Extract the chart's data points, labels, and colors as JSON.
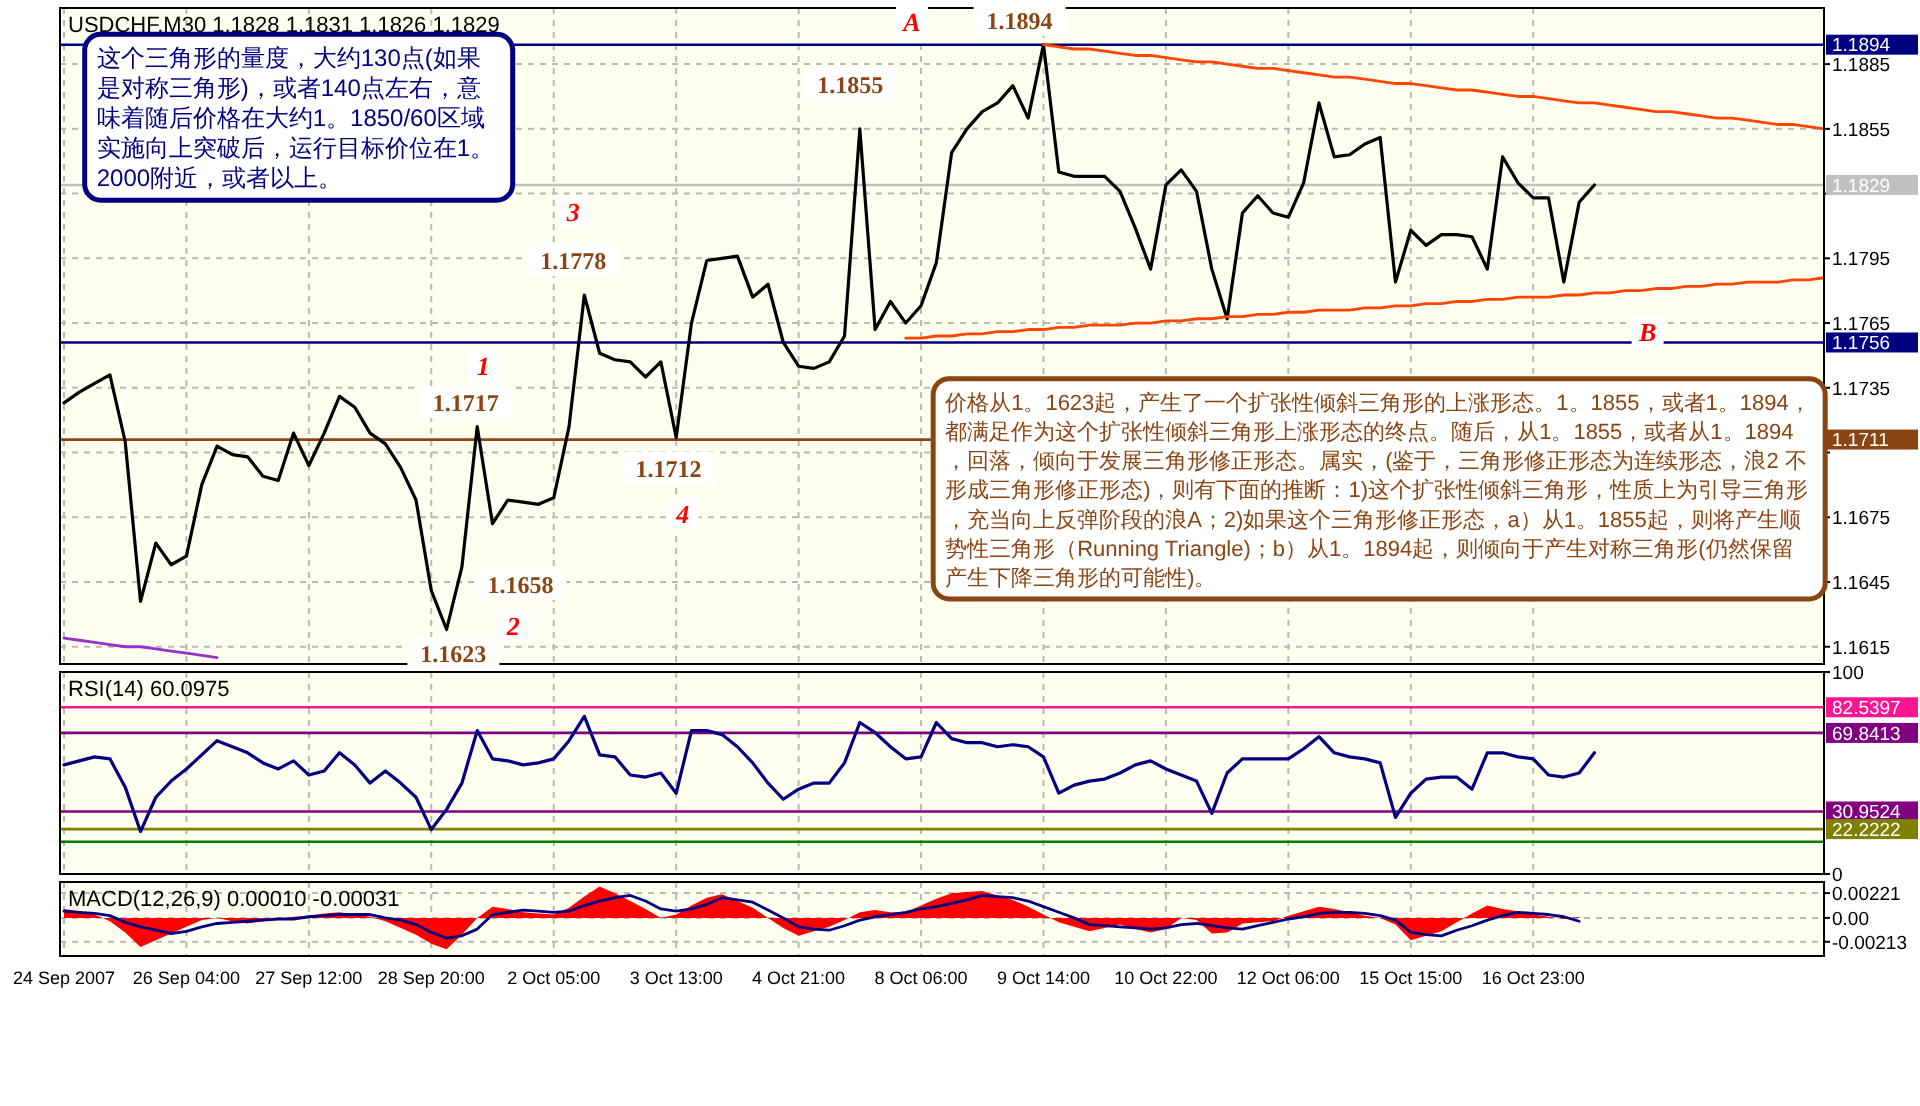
{
  "chart_data": [
    {
      "type": "line",
      "title": "USDCHF,M30  1.1828 1.1831 1.1826 1.1829",
      "grid": true,
      "tick_labels": "y",
      "categories": [
        null,
        null,
        null,
        null,
        null,
        null,
        null,
        null,
        null,
        null,
        null,
        null,
        null,
        null,
        null,
        null,
        null,
        null,
        null,
        null,
        null,
        null,
        null,
        null,
        null,
        null,
        null,
        null,
        null,
        null,
        null,
        null,
        null,
        null,
        null,
        null,
        null,
        null,
        null,
        null,
        null,
        null,
        null,
        null,
        null,
        null,
        null,
        null,
        null,
        null,
        null,
        null,
        null,
        null,
        null,
        null,
        null,
        null,
        null,
        null,
        null,
        null,
        null,
        null,
        null,
        null,
        null,
        null,
        null,
        null,
        null,
        null,
        null,
        null,
        null,
        null,
        null,
        null,
        null,
        null,
        null,
        null,
        null,
        null,
        null,
        null,
        null,
        null,
        null,
        null,
        null,
        null,
        null,
        null,
        null,
        null,
        null,
        null,
        null,
        null,
        null,
        null,
        null,
        null,
        null,
        null,
        null,
        null,
        null,
        null,
        null,
        null,
        null,
        null,
        null,
        null
      ],
      "ylim": [
        1.1607,
        1.1911
      ],
      "yticks": [
        1.1615,
        1.1645,
        1.1675,
        {
          "value": 1.1705,
          "label": null
        },
        1.1735,
        1.1765,
        1.1795,
        {
          "value": 1.1825,
          "label": null
        },
        1.1855,
        1.1885
      ],
      "ref_lines": [
        {
          "axis": "y",
          "value": 1.1894,
          "label": "1.1894",
          "color": "#000080"
        },
        {
          "axis": "y",
          "value": 1.1829,
          "label": "1.1829",
          "color": "#c0c0c0"
        },
        {
          "axis": "y",
          "value": 1.1756,
          "label": "1.1756",
          "color": "#000080"
        },
        {
          "axis": "y",
          "value": 1.1711,
          "label": "1.1711",
          "color": "#8b4513"
        }
      ],
      "series": [
        {
          "color": "#000000",
          "values": [
            1.1728,
            1.1733,
            1.1737,
            1.1741,
            1.171,
            1.1636,
            1.1663,
            1.1653,
            1.1657,
            1.169,
            1.1708,
            1.1704,
            1.1703,
            1.1694,
            1.1692,
            1.1714,
            1.1699,
            1.1714,
            1.1731,
            1.1726,
            1.1714,
            1.1709,
            1.1698,
            1.1683,
            1.1641,
            1.1623,
            1.1652,
            1.1717,
            1.1672,
            1.1683,
            1.1682,
            1.1681,
            1.1684,
            1.1717,
            1.1778,
            1.1751,
            1.1748,
            1.1747,
            1.174,
            1.1747,
            1.1712,
            1.1765,
            1.1794,
            1.1795,
            1.1796,
            1.1777,
            1.1783,
            1.1756,
            1.1745,
            1.1744,
            1.1747,
            1.1759,
            1.1855,
            1.1762,
            1.1775,
            1.1765,
            1.1773,
            1.1793,
            1.1844,
            1.1855,
            1.1863,
            1.1867,
            1.1875,
            1.186,
            1.1894,
            1.1835,
            1.1833,
            1.1833,
            1.1833,
            1.1826,
            1.1809,
            1.179,
            1.1829,
            1.1836,
            1.1826,
            1.179,
            1.1767,
            1.1816,
            1.1824,
            1.1816,
            1.1814,
            1.183,
            1.1867,
            1.1842,
            1.1843,
            1.1848,
            1.1851,
            1.1784,
            1.1808,
            1.1801,
            1.1806,
            1.1806,
            1.1805,
            1.179,
            1.1842,
            1.183,
            1.1823,
            1.1823,
            1.1784,
            1.1821,
            1.1829,
            null,
            null,
            null,
            null,
            null,
            null,
            null,
            null,
            null,
            null,
            null,
            null,
            null,
            null,
            null
          ]
        },
        {
          "color": "#ff4500",
          "values": [
            null,
            null,
            null,
            null,
            null,
            null,
            null,
            null,
            null,
            null,
            null,
            null,
            null,
            null,
            null,
            null,
            null,
            null,
            null,
            null,
            null,
            null,
            null,
            null,
            null,
            null,
            null,
            null,
            null,
            null,
            null,
            null,
            null,
            null,
            null,
            null,
            null,
            null,
            null,
            null,
            null,
            null,
            null,
            null,
            null,
            null,
            null,
            null,
            null,
            null,
            null,
            null,
            null,
            null,
            null,
            null,
            null,
            null,
            null,
            null,
            null,
            null,
            null,
            null,
            1.1894,
            1.1893,
            1.1892,
            1.1892,
            1.1891,
            1.189,
            1.1889,
            1.1889,
            1.1888,
            1.1887,
            1.1886,
            1.1886,
            1.1885,
            1.1884,
            1.1883,
            1.1883,
            1.1882,
            1.1881,
            1.188,
            1.1879,
            1.1879,
            1.1878,
            1.1877,
            1.1876,
            1.1876,
            1.1875,
            1.1874,
            1.1873,
            1.1873,
            1.1872,
            1.1871,
            1.187,
            1.187,
            1.1869,
            1.1868,
            1.1867,
            1.1867,
            1.1866,
            1.1865,
            1.1864,
            1.1863,
            1.1863,
            1.1862,
            1.1861,
            1.186,
            1.186,
            1.1859,
            1.1858,
            1.1857,
            1.1857,
            1.1856,
            1.1855
          ]
        },
        {
          "color": "#ff4500",
          "values": [
            null,
            null,
            null,
            null,
            null,
            null,
            null,
            null,
            null,
            null,
            null,
            null,
            null,
            null,
            null,
            null,
            null,
            null,
            null,
            null,
            null,
            null,
            null,
            null,
            null,
            null,
            null,
            null,
            null,
            null,
            null,
            null,
            null,
            null,
            null,
            null,
            null,
            null,
            null,
            null,
            null,
            null,
            null,
            null,
            null,
            null,
            null,
            null,
            null,
            null,
            null,
            null,
            null,
            null,
            null,
            1.1758,
            1.1758,
            1.1759,
            1.1759,
            1.176,
            1.176,
            1.1761,
            1.1761,
            1.1762,
            1.1762,
            1.1763,
            1.1763,
            1.1764,
            1.1764,
            1.1764,
            1.1765,
            1.1765,
            1.1766,
            1.1766,
            1.1767,
            1.1767,
            1.1768,
            1.1768,
            1.1769,
            1.1769,
            1.177,
            1.177,
            1.1771,
            1.1771,
            1.1771,
            1.1772,
            1.1772,
            1.1773,
            1.1773,
            1.1774,
            1.1774,
            1.1775,
            1.1775,
            1.1776,
            1.1776,
            1.1777,
            1.1777,
            1.1777,
            1.1778,
            1.1778,
            1.1779,
            1.1779,
            1.178,
            1.178,
            1.1781,
            1.1781,
            1.1782,
            1.1782,
            1.1783,
            1.1783,
            1.1784,
            1.1784,
            1.1784,
            1.1785,
            1.1785,
            1.1786
          ]
        },
        {
          "color": "#9932cc",
          "values": [
            1.1619,
            1.1618,
            1.1617,
            1.1616,
            1.1615,
            1.1615,
            1.1614,
            1.1613,
            1.1612,
            1.1611,
            1.161,
            null,
            null,
            null,
            null,
            null,
            null,
            null,
            null,
            null,
            null,
            null,
            null,
            null,
            null,
            null,
            null,
            null,
            null,
            null,
            null,
            null,
            null,
            null,
            null,
            null,
            null,
            null,
            null,
            null,
            null,
            null,
            null,
            null,
            null,
            null,
            null,
            null,
            null,
            null,
            null,
            null,
            null,
            null,
            null,
            null,
            null,
            null,
            null,
            null,
            null,
            null,
            null,
            null,
            null,
            null,
            null,
            null,
            null,
            null,
            null,
            null,
            null,
            null,
            null,
            null,
            null,
            null,
            null,
            null,
            null,
            null,
            null,
            null,
            null,
            null,
            null,
            null,
            null,
            null,
            null,
            null,
            null,
            null,
            null,
            null,
            null,
            null,
            null,
            null,
            null,
            null,
            null,
            null,
            null,
            null,
            null,
            null,
            null,
            null,
            null,
            null,
            null,
            null,
            null,
            null
          ]
        }
      ],
      "annotations": [
        "这个三角形的量度，大约130点(如果是对称三角形)，或者140点左右，意味着随后价格在大约1。1850/60区域实施向上突破后，运行目标价位在1。2000附近，或者以上。",
        "价格从1。1623起，产生了一个扩张性倾斜三角形的上涨形态。1。1855，或者1。1894，都满足作为这个扩张性倾斜三角形上涨形态的终点。随后，从1。1855，或者从1。1894，回落，倾向于发展三角形修正形态。属实，(鉴于，三角形修正形态为连续形态，浪2 不形成三角形修正形态)，则有下面的推断：1)这个扩张性倾斜三角形，性质上为引导三角形，充当向上反弹阶段的浪A；2)如果这个三角形修正形态，a）从1。1855起，则将产生顺势性三角形（Running Triangle)；b）从1。1894起，则倾向于产生对称三角形(仍然保留产生下降三角形的可能性)。",
        "A",
        "1.1894",
        "1.1855",
        "3",
        "1.1778",
        "1",
        "1.1717",
        "1.1712",
        "4",
        "1.1658",
        "2",
        "1.1623",
        "B"
      ]
    },
    {
      "type": "line",
      "title": "RSI(14) 60.0975",
      "grid": true,
      "tick_labels": "y",
      "categories": [
        null,
        null,
        null,
        null,
        null,
        null,
        null,
        null,
        null,
        null,
        null,
        null,
        null,
        null,
        null,
        null,
        null,
        null,
        null,
        null,
        null,
        null,
        null,
        null,
        null,
        null,
        null,
        null,
        null,
        null,
        null,
        null,
        null,
        null,
        null,
        null,
        null,
        null,
        null,
        null,
        null,
        null,
        null,
        null,
        null,
        null,
        null,
        null,
        null,
        null,
        null,
        null,
        null,
        null,
        null,
        null,
        null,
        null,
        null,
        null,
        null,
        null,
        null,
        null,
        null,
        null,
        null,
        null,
        null,
        null,
        null,
        null,
        null,
        null,
        null,
        null,
        null,
        null,
        null,
        null,
        null,
        null,
        null,
        null,
        null,
        null,
        null,
        null,
        null,
        null,
        null,
        null,
        null,
        null,
        null,
        null,
        null,
        null,
        null,
        null,
        null,
        null,
        null,
        null,
        null,
        null,
        null,
        null,
        null,
        null,
        null,
        null,
        null,
        null,
        null,
        null
      ],
      "ylim": [
        0,
        100
      ],
      "yticks": [
        0,
        100
      ],
      "ref_lines": [
        {
          "axis": "y",
          "value": 82.5397,
          "label": "82.5397",
          "color": "#ff1493"
        },
        {
          "axis": "y",
          "value": 69.8413,
          "label": "69.8413",
          "color": "#800080"
        },
        {
          "axis": "y",
          "value": 30.9524,
          "label": "30.9524",
          "color": "#800080"
        },
        {
          "axis": "y",
          "value": 22.2222,
          "label": "22.2222",
          "color": "#808000"
        },
        {
          "axis": "y",
          "value": 16,
          "label": null,
          "color": "#008000"
        }
      ],
      "series": [
        {
          "color": "#000080",
          "values": [
            54,
            56,
            58,
            57,
            43,
            21,
            38,
            46,
            52,
            59,
            66,
            63,
            60,
            55,
            52,
            56,
            49,
            51,
            60,
            54,
            45,
            51,
            45,
            38,
            22,
            32,
            45,
            71,
            57,
            56,
            54,
            55,
            57,
            66,
            78,
            59,
            58,
            49,
            48,
            50,
            40,
            71,
            71,
            69,
            63,
            55,
            45,
            37,
            42,
            45,
            45,
            55,
            75,
            70,
            63,
            57,
            58,
            75,
            67,
            65,
            65,
            63,
            64,
            63,
            58,
            40,
            44,
            46,
            47,
            50,
            54,
            56,
            52,
            49,
            46,
            30,
            50,
            57,
            57,
            57,
            57,
            62,
            68,
            60,
            58,
            57,
            55,
            28,
            40,
            47,
            48,
            48,
            42,
            60,
            60,
            58,
            57,
            49,
            48,
            50,
            60,
            null,
            null,
            null,
            null,
            null,
            null,
            null,
            null,
            null,
            null,
            null,
            null,
            null,
            null,
            null
          ]
        }
      ]
    },
    {
      "type": "line",
      "title": "MACD(12,26,9) 0.00010 -0.00031",
      "grid": true,
      "categories": [
        "24 Sep 2007",
        null,
        null,
        null,
        null,
        null,
        null,
        null,
        "26 Sep 04:00",
        null,
        null,
        null,
        null,
        null,
        null,
        null,
        "27 Sep 12:00",
        null,
        null,
        null,
        null,
        null,
        null,
        null,
        "28 Sep 20:00",
        null,
        null,
        null,
        null,
        null,
        null,
        null,
        "2 Oct 05:00",
        null,
        null,
        null,
        null,
        null,
        null,
        null,
        "3 Oct 13:00",
        null,
        null,
        null,
        null,
        null,
        null,
        null,
        "4 Oct 21:00",
        null,
        null,
        null,
        null,
        null,
        null,
        null,
        "8 Oct 06:00",
        null,
        null,
        null,
        null,
        null,
        null,
        null,
        "9 Oct 14:00",
        null,
        null,
        null,
        null,
        null,
        null,
        null,
        "10 Oct 22:00",
        null,
        null,
        null,
        null,
        null,
        null,
        null,
        "12 Oct 06:00",
        null,
        null,
        null,
        null,
        null,
        null,
        null,
        "15 Oct 15:00",
        null,
        null,
        null,
        null,
        null,
        null,
        null,
        "16 Oct 23:00",
        null,
        null,
        null,
        null,
        null,
        null,
        null,
        null,
        null,
        null,
        null,
        null,
        null,
        null,
        null,
        null,
        null,
        null,
        null
      ],
      "ylim": [
        -0.0034,
        0.0032
      ],
      "yticks": [
        {
          "value": 0.00221,
          "label": "0.00221"
        },
        {
          "value": 0,
          "label": "0.00"
        },
        {
          "value": -0.00213,
          "label": "-0.00213"
        }
      ],
      "series": [
        {
          "type": "area",
          "color": "#ff0000",
          "values": [
            0.0008,
            0.0006,
            0.0003,
            -0.0003,
            -0.0013,
            -0.0026,
            -0.002,
            -0.0014,
            -0.0008,
            -0.0002,
            0.0,
            -0.0003,
            -0.0005,
            -0.0003,
            -0.0001,
            0.0001,
            0.0002,
            0.0004,
            0.0005,
            0.0003,
            0.0001,
            -0.0003,
            -0.0009,
            -0.0015,
            -0.0023,
            -0.0028,
            -0.0015,
            0.0,
            0.001,
            0.0008,
            0.0005,
            0.0004,
            0.0003,
            0.0009,
            0.0019,
            0.0028,
            0.0022,
            0.0015,
            0.0008,
            0.0,
            0.0003,
            0.0011,
            0.0018,
            0.0021,
            0.0015,
            0.0009,
            0.0,
            -0.0009,
            -0.0016,
            -0.0012,
            -0.0008,
            -0.0002,
            0.0005,
            0.0007,
            0.0005,
            0.0005,
            0.0011,
            0.0017,
            0.0022,
            0.0023,
            0.0024,
            0.002,
            0.0016,
            0.001,
            0.0003,
            -0.0004,
            -0.0008,
            -0.0012,
            -0.0009,
            -0.0006,
            -0.001,
            -0.0013,
            -0.001,
            0.0,
            -0.0002,
            -0.0014,
            -0.0013,
            -0.0005,
            -0.0004,
            -0.0003,
            0.0002,
            0.0006,
            0.001,
            0.0008,
            0.0005,
            0.0002,
            0.0,
            -0.0006,
            -0.002,
            -0.0016,
            -0.0012,
            -0.0004,
            0.0004,
            0.0011,
            0.0008,
            0.0006,
            0.0003,
            0.0001,
            -0.0001,
            0.0001,
            null,
            null,
            null,
            null,
            null,
            null,
            null,
            null,
            null,
            null,
            null,
            null,
            null,
            null,
            null,
            null
          ]
        },
        {
          "type": "line",
          "color": "#000080",
          "values": [
            0.0006,
            0.0005,
            0.0004,
            0.0002,
            -0.0004,
            -0.0008,
            -0.0011,
            -0.0014,
            -0.0012,
            -0.0008,
            -0.0005,
            -0.0004,
            -0.0003,
            -0.0002,
            -0.0001,
            -0.0001,
            0.0001,
            0.0002,
            0.0003,
            0.0003,
            0.0003,
            0.0,
            -0.0002,
            -0.0006,
            -0.0013,
            -0.0018,
            -0.0016,
            -0.001,
            0.0003,
            0.0005,
            0.0007,
            0.0006,
            0.0005,
            0.0006,
            0.0011,
            0.0015,
            0.0018,
            0.002,
            0.0015,
            0.0008,
            0.0006,
            0.0008,
            0.0012,
            0.0018,
            0.0016,
            0.0014,
            0.0007,
            0.0,
            -0.0008,
            -0.001,
            -0.0011,
            -0.0007,
            -0.0002,
            0.0001,
            0.0003,
            0.0005,
            0.0008,
            0.001,
            0.0013,
            0.0016,
            0.002,
            0.0019,
            0.0018,
            0.0015,
            0.001,
            0.0005,
            0.0,
            -0.0006,
            -0.0007,
            -0.0008,
            -0.0009,
            -0.001,
            -0.0009,
            -0.0006,
            -0.0005,
            -0.0007,
            -0.0009,
            -0.001,
            -0.0007,
            -0.0004,
            -0.0001,
            0.0001,
            0.0004,
            0.0005,
            0.0005,
            0.0004,
            0.0002,
            -0.0002,
            -0.0013,
            -0.0015,
            -0.0016,
            -0.0011,
            -0.0007,
            -0.0002,
            0.0002,
            0.0005,
            0.0004,
            0.0003,
            0.0001,
            -0.0003,
            null,
            null,
            null,
            null,
            null,
            null,
            null,
            null,
            null,
            null,
            null,
            null,
            null,
            null,
            null,
            null
          ]
        }
      ]
    }
  ]
}
